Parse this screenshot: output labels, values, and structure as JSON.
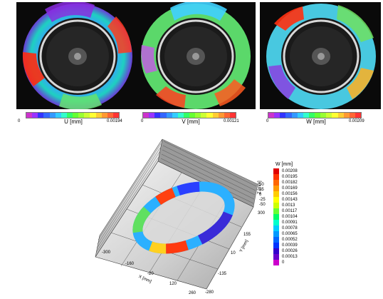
{
  "panels": [
    {
      "label": "U [mm]",
      "min": "0",
      "max": "0.00194"
    },
    {
      "label": "V [mm]",
      "min": "0",
      "max": "0.00121"
    },
    {
      "label": "W [mm]",
      "min": "0",
      "max": "0.00209"
    }
  ],
  "colorbar_colors": [
    "#cc33cc",
    "#9933ff",
    "#3333ff",
    "#3366ff",
    "#3399ff",
    "#33ccff",
    "#33ffcc",
    "#33ff66",
    "#66ff33",
    "#99ff33",
    "#ccff33",
    "#ffff33",
    "#ffcc33",
    "#ff9933",
    "#ff6633",
    "#ff3333"
  ],
  "legend_3d": {
    "title": "W [mm]",
    "values": [
      "0.00208",
      "0.00195",
      "0.00182",
      "0.00169",
      "0.00156",
      "0.00143",
      "0.0013",
      "0.00117",
      "0.00104",
      "0.00091",
      "0.00078",
      "0.00065",
      "0.00052",
      "0.00039",
      "0.00026",
      "0.00013",
      "0"
    ],
    "colors": [
      "#e00000",
      "#ff3300",
      "#ff6600",
      "#ff9900",
      "#ffcc00",
      "#ffff00",
      "#ccff00",
      "#66ff33",
      "#00ff66",
      "#00ffcc",
      "#00ccff",
      "#0099ff",
      "#0066ff",
      "#0033ff",
      "#3300cc",
      "#6600cc",
      "#cc00cc"
    ]
  },
  "axes_3d": {
    "z_label": "Z [mm]",
    "z_ticks": [
      "50",
      "25",
      "0",
      "-25",
      "-50"
    ],
    "y_label": "Y [mm]",
    "y_ticks": [
      "300",
      "155",
      "10",
      "-135",
      "-280"
    ],
    "x_label": "X [mm]",
    "x_ticks": [
      "-300",
      "-160",
      "-20",
      "120",
      "260"
    ]
  }
}
